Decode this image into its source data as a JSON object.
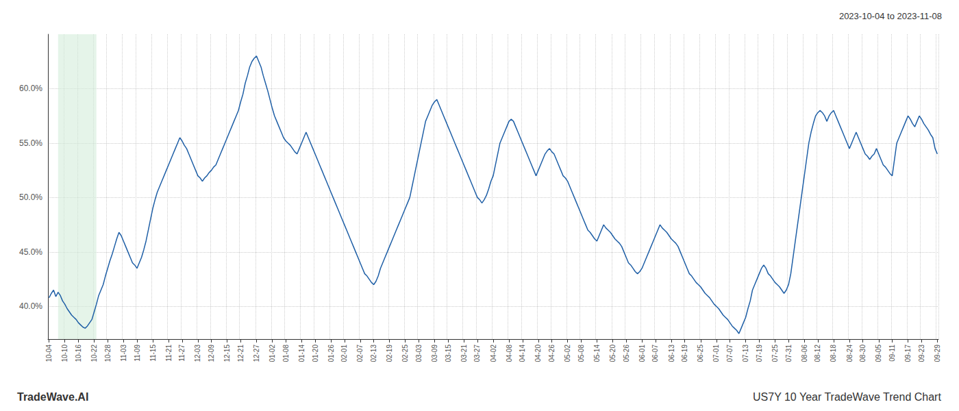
{
  "chart_data": {
    "type": "line",
    "title": "US7Y 10 Year TradeWave Trend Chart",
    "subtitle": "2023-10-04 to 2023-11-08",
    "annotations": [
      "TradeWave.AI"
    ],
    "color": "#1f5fa6",
    "grid": true,
    "ylim": [
      37.0,
      65.0
    ],
    "yticks": [
      {
        "value": 40.0,
        "label": "40.0%"
      },
      {
        "value": 45.0,
        "label": "45.0%"
      },
      {
        "value": 50.0,
        "label": "50.0%"
      },
      {
        "value": 55.0,
        "label": "55.0%"
      },
      {
        "value": 60.0,
        "label": "60.0%"
      }
    ],
    "highlight": {
      "start": 4,
      "end": 21,
      "color": "#d4edda"
    },
    "categories": [
      "10-04",
      null,
      null,
      null,
      null,
      null,
      null,
      "10-10",
      null,
      null,
      null,
      null,
      null,
      "10-16",
      null,
      null,
      null,
      null,
      null,
      null,
      "10-22",
      null,
      null,
      null,
      null,
      null,
      "10-28",
      null,
      null,
      null,
      null,
      null,
      null,
      "11-03",
      null,
      null,
      null,
      null,
      null,
      "11-09",
      null,
      null,
      null,
      null,
      null,
      null,
      "11-15",
      null,
      null,
      null,
      null,
      null,
      null,
      "11-21",
      null,
      null,
      null,
      null,
      null,
      "11-27",
      null,
      null,
      null,
      null,
      null,
      null,
      "12-03",
      null,
      null,
      null,
      null,
      null,
      "12-09",
      null,
      null,
      null,
      null,
      null,
      null,
      "12-15",
      null,
      null,
      null,
      null,
      null,
      "12-21",
      null,
      null,
      null,
      null,
      null,
      null,
      "12-27",
      null,
      null,
      null,
      null,
      null,
      null,
      "01-02",
      null,
      null,
      null,
      null,
      null,
      "01-08",
      null,
      null,
      null,
      null,
      null,
      null,
      "01-14",
      null,
      null,
      null,
      null,
      null,
      "01-20",
      null,
      null,
      null,
      null,
      null,
      null,
      "01-26",
      null,
      null,
      null,
      null,
      null,
      "02-01",
      null,
      null,
      null,
      null,
      null,
      null,
      "02-07",
      null,
      null,
      null,
      null,
      null,
      "02-13",
      null,
      null,
      null,
      null,
      null,
      null,
      "02-19",
      null,
      null,
      null,
      null,
      null,
      null,
      "02-25",
      null,
      null,
      null,
      null,
      null,
      "03-03",
      null,
      null,
      null,
      null,
      null,
      null,
      "03-09",
      null,
      null,
      null,
      null,
      null,
      "03-15",
      null,
      null,
      null,
      null,
      null,
      null,
      "03-21",
      null,
      null,
      null,
      null,
      null,
      "03-27",
      null,
      null,
      null,
      null,
      null,
      null,
      "04-02",
      null,
      null,
      null,
      null,
      null,
      null,
      "04-08",
      null,
      null,
      null,
      null,
      null,
      "04-14",
      null,
      null,
      null,
      null,
      null,
      null,
      "04-20",
      null,
      null,
      null,
      null,
      null,
      "04-26",
      null,
      null,
      null,
      null,
      null,
      null,
      "05-02",
      null,
      null,
      null,
      null,
      null,
      "05-08",
      null,
      null,
      null,
      null,
      null,
      null,
      "05-14",
      null,
      null,
      null,
      null,
      null,
      null,
      "05-20",
      null,
      null,
      null,
      null,
      null,
      "05-26",
      null,
      null,
      null,
      null,
      null,
      null,
      "06-01",
      null,
      null,
      null,
      null,
      null,
      "06-07",
      null,
      null,
      null,
      null,
      null,
      null,
      "06-13",
      null,
      null,
      null,
      null,
      null,
      "06-19",
      null,
      null,
      null,
      null,
      null,
      null,
      "06-25",
      null,
      null,
      null,
      null,
      null,
      null,
      "07-01",
      null,
      null,
      null,
      null,
      null,
      "07-07",
      null,
      null,
      null,
      null,
      null,
      null,
      "07-13",
      null,
      null,
      null,
      null,
      null,
      "07-19",
      null,
      null,
      null,
      null,
      null,
      null,
      "07-25",
      null,
      null,
      null,
      null,
      null,
      "07-31",
      null,
      null,
      null,
      null,
      null,
      null,
      "08-06",
      null,
      null,
      null,
      null,
      null,
      "08-12",
      null,
      null,
      null,
      null,
      null,
      null,
      "08-18",
      null,
      null,
      null,
      null,
      null,
      null,
      "08-24",
      null,
      null,
      null,
      null,
      null,
      "08-30",
      null,
      null,
      null,
      null,
      null,
      null,
      "09-05",
      null,
      null,
      null,
      null,
      null,
      "09-11",
      null,
      null,
      null,
      null,
      null,
      null,
      "09-17",
      null,
      null,
      null,
      null,
      null,
      "09-23",
      null,
      null,
      null,
      null,
      null,
      null,
      "09-29"
    ],
    "values": [
      40.8,
      41.2,
      41.5,
      40.9,
      41.3,
      41.0,
      40.5,
      40.2,
      39.8,
      39.5,
      39.2,
      39.0,
      38.8,
      38.5,
      38.3,
      38.1,
      38.0,
      38.2,
      38.5,
      38.8,
      39.5,
      40.2,
      41.0,
      41.5,
      42.0,
      42.8,
      43.5,
      44.2,
      44.8,
      45.5,
      46.2,
      46.8,
      46.5,
      46.0,
      45.5,
      45.0,
      44.5,
      44.0,
      43.8,
      43.5,
      44.0,
      44.5,
      45.2,
      46.0,
      47.0,
      48.0,
      49.0,
      49.8,
      50.5,
      51.0,
      51.5,
      52.0,
      52.5,
      53.0,
      53.5,
      54.0,
      54.5,
      55.0,
      55.5,
      55.2,
      54.8,
      54.5,
      54.0,
      53.5,
      53.0,
      52.5,
      52.0,
      51.8,
      51.5,
      51.8,
      52.0,
      52.3,
      52.5,
      52.8,
      53.0,
      53.5,
      54.0,
      54.5,
      55.0,
      55.5,
      56.0,
      56.5,
      57.0,
      57.5,
      58.0,
      58.8,
      59.5,
      60.5,
      61.2,
      62.0,
      62.5,
      62.8,
      63.0,
      62.5,
      62.0,
      61.2,
      60.5,
      59.8,
      59.0,
      58.2,
      57.5,
      57.0,
      56.5,
      56.0,
      55.5,
      55.2,
      55.0,
      54.8,
      54.5,
      54.2,
      54.0,
      54.5,
      55.0,
      55.5,
      56.0,
      55.5,
      55.0,
      54.5,
      54.0,
      53.5,
      53.0,
      52.5,
      52.0,
      51.5,
      51.0,
      50.5,
      50.0,
      49.5,
      49.0,
      48.5,
      48.0,
      47.5,
      47.0,
      46.5,
      46.0,
      45.5,
      45.0,
      44.5,
      44.0,
      43.5,
      43.0,
      42.8,
      42.5,
      42.2,
      42.0,
      42.3,
      42.8,
      43.5,
      44.0,
      44.5,
      45.0,
      45.5,
      46.0,
      46.5,
      47.0,
      47.5,
      48.0,
      48.5,
      49.0,
      49.5,
      50.0,
      51.0,
      52.0,
      53.0,
      54.0,
      55.0,
      56.0,
      57.0,
      57.5,
      58.0,
      58.5,
      58.8,
      59.0,
      58.5,
      58.0,
      57.5,
      57.0,
      56.5,
      56.0,
      55.5,
      55.0,
      54.5,
      54.0,
      53.5,
      53.0,
      52.5,
      52.0,
      51.5,
      51.0,
      50.5,
      50.0,
      49.8,
      49.5,
      49.8,
      50.2,
      50.8,
      51.5,
      52.0,
      53.0,
      54.0,
      55.0,
      55.5,
      56.0,
      56.5,
      57.0,
      57.2,
      57.0,
      56.5,
      56.0,
      55.5,
      55.0,
      54.5,
      54.0,
      53.5,
      53.0,
      52.5,
      52.0,
      52.5,
      53.0,
      53.5,
      54.0,
      54.3,
      54.5,
      54.2,
      54.0,
      53.5,
      53.0,
      52.5,
      52.0,
      51.8,
      51.5,
      51.0,
      50.5,
      50.0,
      49.5,
      49.0,
      48.5,
      48.0,
      47.5,
      47.0,
      46.8,
      46.5,
      46.2,
      46.0,
      46.5,
      47.0,
      47.5,
      47.2,
      47.0,
      46.8,
      46.5,
      46.2,
      46.0,
      45.8,
      45.5,
      45.0,
      44.5,
      44.0,
      43.8,
      43.5,
      43.2,
      43.0,
      43.2,
      43.5,
      44.0,
      44.5,
      45.0,
      45.5,
      46.0,
      46.5,
      47.0,
      47.5,
      47.2,
      47.0,
      46.8,
      46.5,
      46.2,
      46.0,
      45.8,
      45.5,
      45.0,
      44.5,
      44.0,
      43.5,
      43.0,
      42.8,
      42.5,
      42.2,
      42.0,
      41.8,
      41.5,
      41.2,
      41.0,
      40.8,
      40.5,
      40.2,
      40.0,
      39.8,
      39.5,
      39.2,
      39.0,
      38.8,
      38.5,
      38.2,
      38.0,
      37.8,
      37.5,
      38.0,
      38.5,
      39.0,
      39.8,
      40.5,
      41.5,
      42.0,
      42.5,
      43.0,
      43.5,
      43.8,
      43.5,
      43.0,
      42.8,
      42.5,
      42.2,
      42.0,
      41.8,
      41.5,
      41.2,
      41.5,
      42.0,
      43.0,
      44.5,
      46.0,
      47.5,
      49.0,
      50.5,
      52.0,
      53.5,
      55.0,
      56.0,
      56.8,
      57.5,
      57.8,
      58.0,
      57.8,
      57.5,
      57.0,
      57.5,
      57.8,
      58.0,
      57.5,
      57.0,
      56.5,
      56.0,
      55.5,
      55.0,
      54.5,
      55.0,
      55.5,
      56.0,
      55.5,
      55.0,
      54.5,
      54.0,
      53.8,
      53.5,
      53.8,
      54.0,
      54.5,
      54.0,
      53.5,
      53.0,
      52.8,
      52.5,
      52.2,
      52.0,
      53.5,
      55.0,
      55.5,
      56.0,
      56.5,
      57.0,
      57.5,
      57.2,
      56.8,
      56.5,
      57.0,
      57.5,
      57.2,
      56.8,
      56.5,
      56.2,
      55.8,
      55.5,
      54.5,
      54.0
    ]
  }
}
